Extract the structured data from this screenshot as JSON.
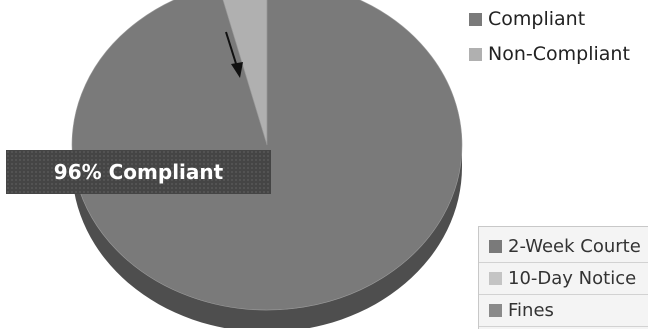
{
  "chart_data": {
    "type": "pie",
    "title": "",
    "slices": [
      {
        "label": "Compliant",
        "value": 96,
        "color": "#7a7a7a"
      },
      {
        "label": "Non-Compliant",
        "value": 4,
        "color": "#b0b0b0"
      }
    ],
    "annotation": "96% Compliant",
    "legend": [
      {
        "label": "Compliant",
        "color": "#7a7a7a"
      },
      {
        "label": "Non-Compliant",
        "color": "#b0b0b0"
      }
    ],
    "secondary_legend": [
      {
        "label": "2-Week Courte",
        "color": "#7a7a7a"
      },
      {
        "label": "10-Day Notice",
        "color": "#c4c4c4"
      },
      {
        "label": "Fines",
        "color": "#8a8a8a"
      }
    ]
  }
}
